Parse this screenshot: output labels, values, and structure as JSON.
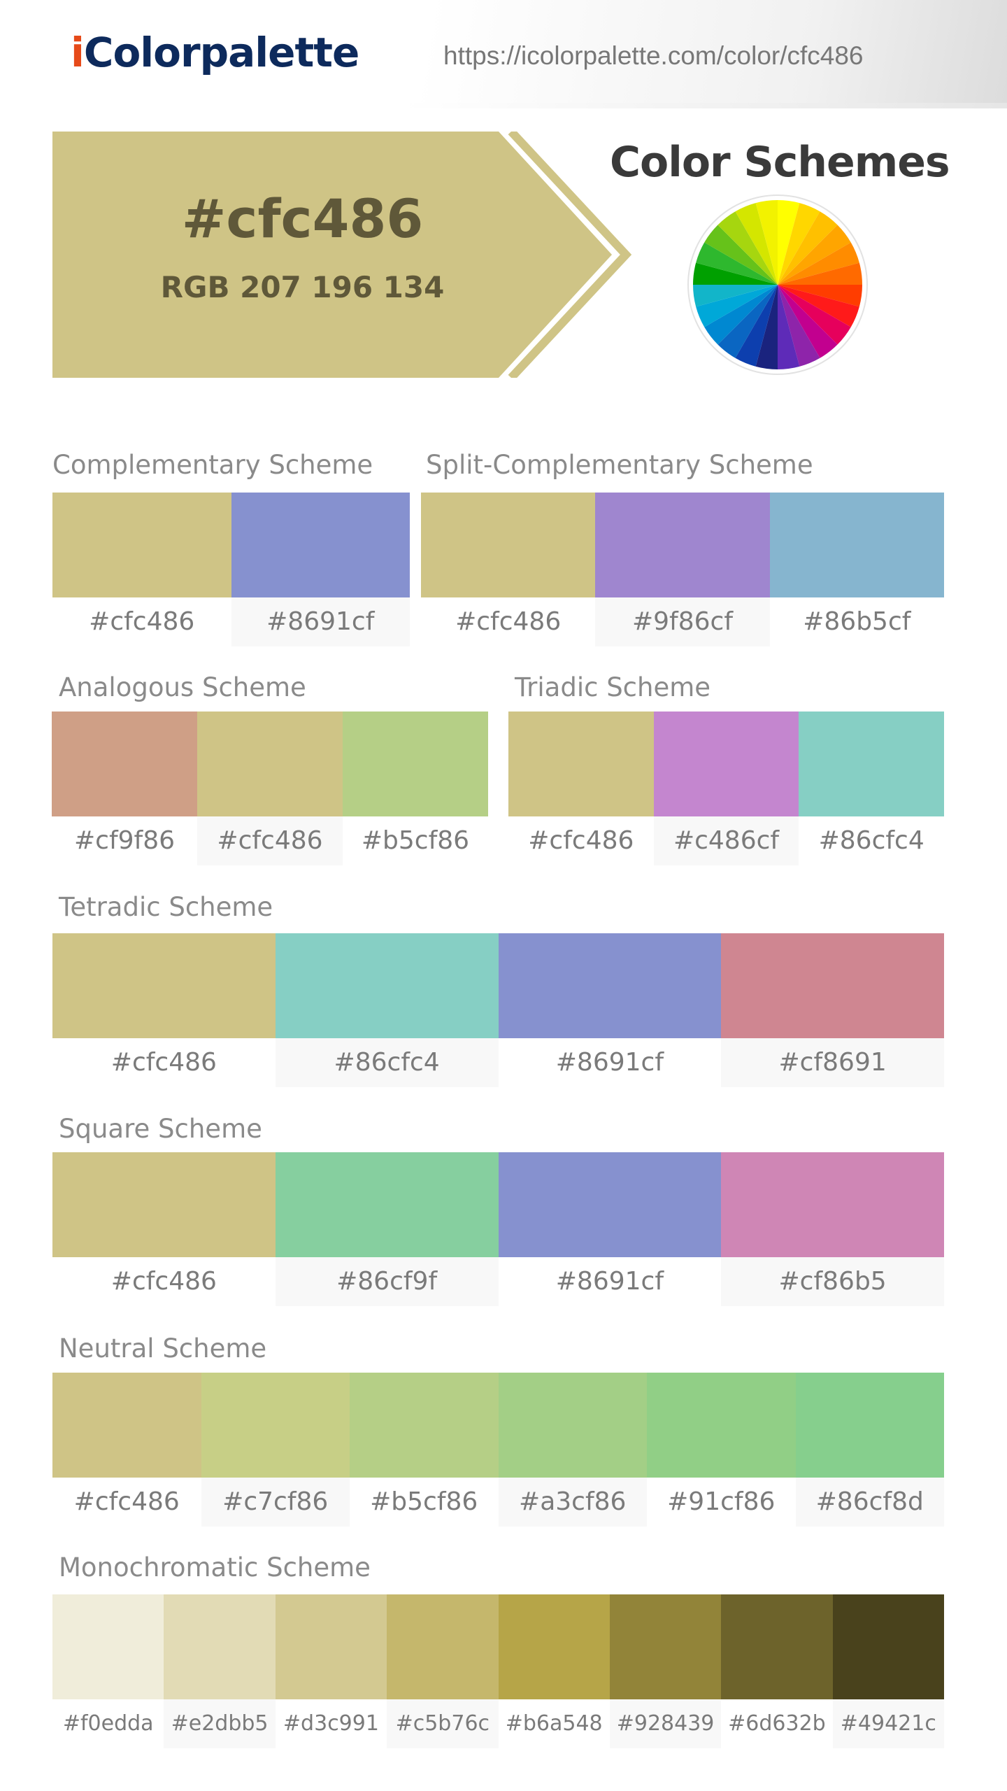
{
  "header": {
    "logo_first": "i",
    "logo_rest": "Colorpalette",
    "url": "https://icolorpalette.com/color/cfc486"
  },
  "hero": {
    "hex": "#cfc486",
    "rgb": "RGB 207 196 134",
    "color": "#cfc486"
  },
  "schemes_title": "Color Schemes",
  "schemes": {
    "complementary": {
      "title": "Complementary Scheme",
      "swatches": [
        {
          "color": "#cfc486",
          "label": "#cfc486"
        },
        {
          "color": "#8691cf",
          "label": "#8691cf"
        }
      ]
    },
    "split": {
      "title": "Split-Complementary Scheme",
      "swatches": [
        {
          "color": "#cfc486",
          "label": "#cfc486"
        },
        {
          "color": "#9f86cf",
          "label": "#9f86cf"
        },
        {
          "color": "#86b5cf",
          "label": "#86b5cf"
        }
      ]
    },
    "analogous": {
      "title": "Analogous Scheme",
      "swatches": [
        {
          "color": "#cf9f86",
          "label": "#cf9f86"
        },
        {
          "color": "#cfc486",
          "label": "#cfc486"
        },
        {
          "color": "#b5cf86",
          "label": "#b5cf86"
        }
      ]
    },
    "triadic": {
      "title": "Triadic Scheme",
      "swatches": [
        {
          "color": "#cfc486",
          "label": "#cfc486"
        },
        {
          "color": "#c486cf",
          "label": "#c486cf"
        },
        {
          "color": "#86cfc4",
          "label": "#86cfc4"
        }
      ]
    },
    "tetradic": {
      "title": "Tetradic Scheme",
      "swatches": [
        {
          "color": "#cfc486",
          "label": "#cfc486"
        },
        {
          "color": "#86cfc4",
          "label": "#86cfc4"
        },
        {
          "color": "#8691cf",
          "label": "#8691cf"
        },
        {
          "color": "#cf8691",
          "label": "#cf8691"
        }
      ]
    },
    "square": {
      "title": "Square Scheme",
      "swatches": [
        {
          "color": "#cfc486",
          "label": "#cfc486"
        },
        {
          "color": "#86cf9f",
          "label": "#86cf9f"
        },
        {
          "color": "#8691cf",
          "label": "#8691cf"
        },
        {
          "color": "#cf86b5",
          "label": "#cf86b5"
        }
      ]
    },
    "neutral": {
      "title": "Neutral Scheme",
      "swatches": [
        {
          "color": "#cfc486",
          "label": "#cfc486"
        },
        {
          "color": "#c7cf86",
          "label": "#c7cf86"
        },
        {
          "color": "#b5cf86",
          "label": "#b5cf86"
        },
        {
          "color": "#a3cf86",
          "label": "#a3cf86"
        },
        {
          "color": "#91cf86",
          "label": "#91cf86"
        },
        {
          "color": "#86cf8d",
          "label": "#86cf8d"
        }
      ]
    },
    "monochromatic": {
      "title": "Monochromatic Scheme",
      "swatches": [
        {
          "color": "#f0edda",
          "label": "#f0edda"
        },
        {
          "color": "#e2dbb5",
          "label": "#e2dbb5"
        },
        {
          "color": "#d3c991",
          "label": "#d3c991"
        },
        {
          "color": "#c5b76c",
          "label": "#c5b76c"
        },
        {
          "color": "#b6a548",
          "label": "#b6a548"
        },
        {
          "color": "#928439",
          "label": "#928439"
        },
        {
          "color": "#6d632b",
          "label": "#6d632b"
        },
        {
          "color": "#49421c",
          "label": "#49421c"
        }
      ]
    }
  },
  "wheel_colors": [
    "#ffff00",
    "#ffd700",
    "#ffc000",
    "#ffa500",
    "#ff8c00",
    "#ff6a00",
    "#ff3d00",
    "#ff1a1a",
    "#e6005c",
    "#c2008f",
    "#8e24aa",
    "#5e2bb8",
    "#1a237e",
    "#0d3fae",
    "#0a66c2",
    "#0088d1",
    "#00a8d8",
    "#12b5c9",
    "#00a000",
    "#2eb82e",
    "#66c21a",
    "#a6d60f",
    "#d4e600",
    "#f2f200"
  ]
}
